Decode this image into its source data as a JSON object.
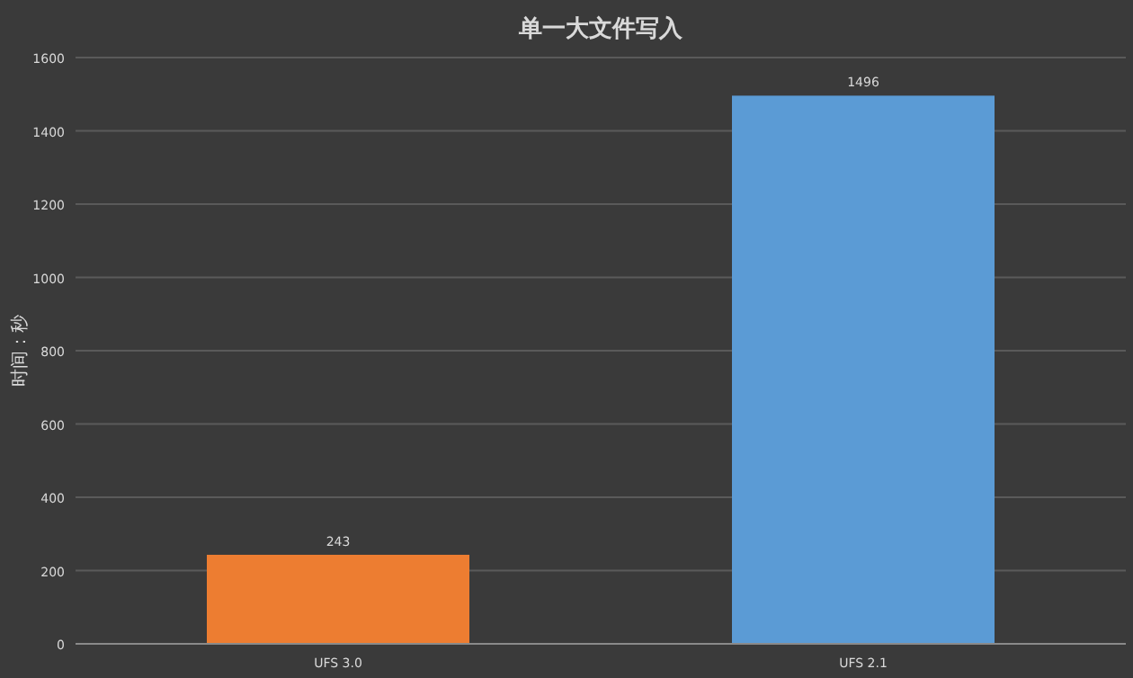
{
  "chart_data": {
    "type": "bar",
    "title": "单一大文件写入",
    "ylabel": "时间：秒",
    "categories": [
      "UFS 3.0",
      "UFS 2.1"
    ],
    "values": [
      243,
      1496
    ],
    "colors": [
      "#ed7d31",
      "#5b9bd5"
    ],
    "ylim": [
      0,
      1600
    ],
    "yticks": [
      0,
      200,
      400,
      600,
      800,
      1000,
      1200,
      1400,
      1600
    ],
    "grid": "y",
    "data_labels": true
  }
}
